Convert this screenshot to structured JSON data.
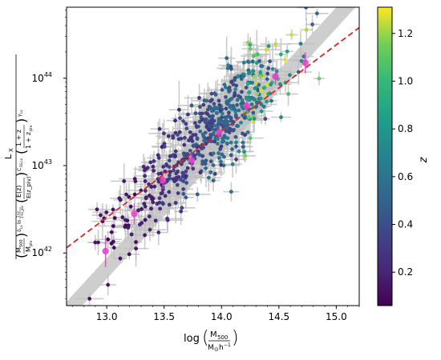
{
  "chart_data": {
    "type": "scatter",
    "xlabel": "log(M500 / M⊙h⁻¹)",
    "ylabel": "L_X / ((M500/M_piv)^(δ_Lx ln((1+z)/(1+z_piv))) (E(z)/E(z_piv))^(C_SS,Lx) ((1+z)/(1+z_piv))^(γ_Lx))",
    "xlim": [
      12.65,
      15.2
    ],
    "ylim": [
      2.5e+41,
      6.5e+44
    ],
    "yscale": "log",
    "x_ticks": [
      "13.0",
      "13.5",
      "14.0",
      "14.5",
      "15.0"
    ],
    "y_ticks": [
      "10^42",
      "10^43",
      "10^44"
    ],
    "colorbar": {
      "label": "z",
      "range": [
        0.06,
        1.31
      ],
      "ticks": [
        "0.2",
        "0.4",
        "0.6",
        "0.8",
        "1.0",
        "1.2"
      ],
      "colormap": "viridis"
    },
    "fit_line": {
      "color": "#d62728",
      "style": "dashed",
      "points": [
        [
          12.65,
          1.15e+42
        ],
        [
          15.2,
          3.8e+44
        ]
      ]
    },
    "scatter_band": {
      "color": "#bdbdbd",
      "center_points": [
        [
          12.65,
          2.1e+41
        ],
        [
          15.2,
          9.5e+44
        ]
      ],
      "half_width_dex": 0.12
    },
    "binned_points": {
      "color": "#e040c8",
      "points": [
        {
          "x": 12.99,
          "y": 1.05e+42,
          "yerr_dex": 0.18
        },
        {
          "x": 13.24,
          "y": 2.8e+42,
          "yerr_dex": 0.12
        },
        {
          "x": 13.49,
          "y": 6.8e+42,
          "yerr_dex": 0.1
        },
        {
          "x": 13.74,
          "y": 1.15e+43,
          "yerr_dex": 0.08
        },
        {
          "x": 13.98,
          "y": 2.4e+43,
          "yerr_dex": 0.08
        },
        {
          "x": 14.22,
          "y": 4.8e+43,
          "yerr_dex": 0.08
        },
        {
          "x": 14.47,
          "y": 1.05e+44,
          "yerr_dex": 0.1
        },
        {
          "x": 14.73,
          "y": 1.5e+44,
          "yerr_dex": 0.12
        }
      ]
    },
    "population": {
      "count": 600,
      "x_range": [
        12.85,
        14.85
      ],
      "relation": "log Lx = 43.5 + 1.25 (log M - 14.0) ± 0.25 dex",
      "redshift_trend": "higher mass → higher z"
    }
  },
  "colors": {
    "axes": "#000000",
    "errorbar": "#bfbfbf",
    "fit": "#d62728",
    "band": "#bdbdbd",
    "binned": "#e040c8"
  }
}
